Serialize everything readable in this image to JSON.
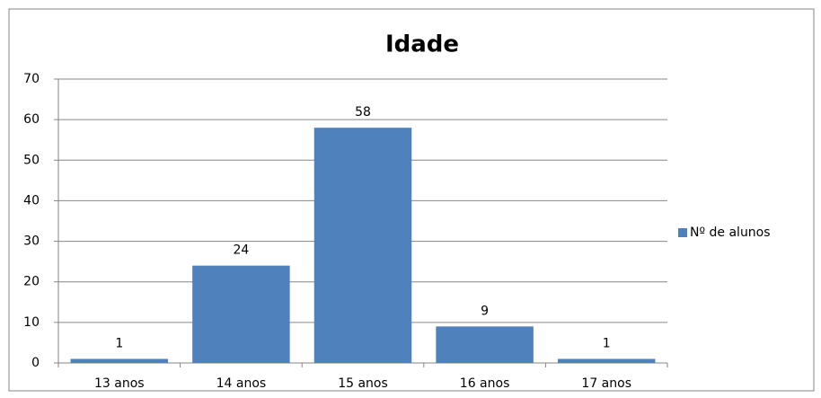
{
  "chart_data": {
    "type": "bar",
    "title": "Idade",
    "categories": [
      "13 anos",
      "14 anos",
      "15 anos",
      "16 anos",
      "17 anos"
    ],
    "series": [
      {
        "name": "Nº de alunos",
        "color": "#4f81bd",
        "values": [
          1,
          24,
          58,
          9,
          1
        ]
      }
    ],
    "ylim": [
      0,
      70
    ],
    "yticks": [
      0,
      10,
      20,
      30,
      40,
      50,
      60,
      70
    ],
    "grid": true,
    "legend": "right"
  }
}
